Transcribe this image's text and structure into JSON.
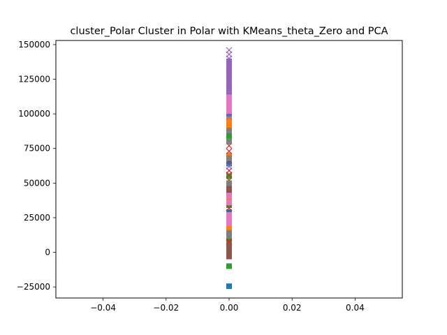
{
  "chart_data": {
    "type": "scatter",
    "title": "cluster_Polar Cluster in Polar with KMeans_theta_Zero and PCA",
    "xlabel": "",
    "ylabel": "",
    "xlim": [
      -0.055,
      0.055
    ],
    "ylim": [
      -33000,
      153000
    ],
    "x_ticks": [
      -0.04,
      -0.02,
      0.0,
      0.02,
      0.04
    ],
    "x_tick_labels": [
      "−0.04",
      "−0.02",
      "0.00",
      "0.02",
      "0.04"
    ],
    "y_ticks": [
      -25000,
      0,
      25000,
      50000,
      75000,
      100000,
      125000,
      150000
    ],
    "y_tick_labels": [
      "−25000",
      "0",
      "25000",
      "50000",
      "75000",
      "100000",
      "125000",
      "150000"
    ],
    "grid": false,
    "legend": "none",
    "series": [
      {
        "color": "#1f77b4",
        "marker": "square",
        "points": [
          [
            0,
            -24500
          ],
          [
            0,
            29000
          ],
          [
            0,
            64000
          ],
          [
            0,
            86000
          ],
          [
            0,
            100000
          ]
        ]
      },
      {
        "color": "#ff7f0e",
        "marker": "square",
        "points": [
          [
            0,
            17500
          ],
          [
            0,
            19000
          ],
          [
            0,
            38000
          ],
          [
            0,
            70000
          ],
          [
            0,
            92000
          ],
          [
            0,
            96000
          ]
        ]
      },
      {
        "color": "#2ca02c",
        "marker": "square",
        "points": [
          [
            0,
            -10000
          ],
          [
            0,
            9000
          ],
          [
            0,
            34000
          ],
          [
            0,
            55000
          ],
          [
            0,
            84000
          ]
        ]
      },
      {
        "color": "#d62728",
        "marker": "x",
        "points": [
          [
            0,
            7000
          ],
          [
            0,
            8000
          ],
          [
            0,
            32000
          ],
          [
            0,
            45000
          ],
          [
            0,
            52000
          ],
          [
            0,
            56000
          ],
          [
            0,
            59000
          ],
          [
            0,
            66000
          ],
          [
            0,
            73000
          ],
          [
            0,
            77000
          ]
        ]
      },
      {
        "color": "#9467bd",
        "marker": "x",
        "points": [
          [
            0,
            26000
          ],
          [
            0,
            62000
          ],
          [
            0,
            98000
          ],
          [
            0,
            116000
          ],
          [
            0,
            122000
          ],
          [
            0,
            128000
          ],
          [
            0,
            134000
          ],
          [
            0,
            140000
          ],
          [
            0,
            143000
          ],
          [
            0,
            146000
          ]
        ]
      },
      {
        "color": "#8c564b",
        "marker": "square",
        "points": [
          [
            0,
            -3000
          ],
          [
            0,
            -1000
          ],
          [
            0,
            1000
          ],
          [
            0,
            3000
          ],
          [
            0,
            5000
          ],
          [
            0,
            44000
          ],
          [
            0,
            48000
          ]
        ]
      },
      {
        "color": "#e377c2",
        "marker": "square",
        "points": [
          [
            0,
            21000
          ],
          [
            0,
            24000
          ],
          [
            0,
            27000
          ],
          [
            0,
            36000
          ],
          [
            0,
            41000
          ],
          [
            0,
            102000
          ],
          [
            0,
            104000
          ],
          [
            0,
            106000
          ],
          [
            0,
            108000
          ],
          [
            0,
            110000
          ],
          [
            0,
            112000
          ],
          [
            0,
            114000
          ]
        ]
      },
      {
        "color": "#7f7f7f",
        "marker": "square",
        "points": [
          [
            0,
            12000
          ],
          [
            0,
            14000
          ],
          [
            0,
            50000
          ],
          [
            0,
            68000
          ],
          [
            0,
            80000
          ],
          [
            0,
            88000
          ]
        ]
      },
      {
        "color": "#9467bd",
        "marker": "square",
        "points": [
          [
            0,
            116000
          ],
          [
            0,
            118000
          ],
          [
            0,
            120000
          ],
          [
            0,
            122000
          ],
          [
            0,
            124000
          ],
          [
            0,
            126000
          ],
          [
            0,
            128000
          ],
          [
            0,
            130000
          ],
          [
            0,
            132000
          ],
          [
            0,
            134000
          ],
          [
            0,
            136000
          ],
          [
            0,
            138000
          ]
        ]
      }
    ]
  }
}
